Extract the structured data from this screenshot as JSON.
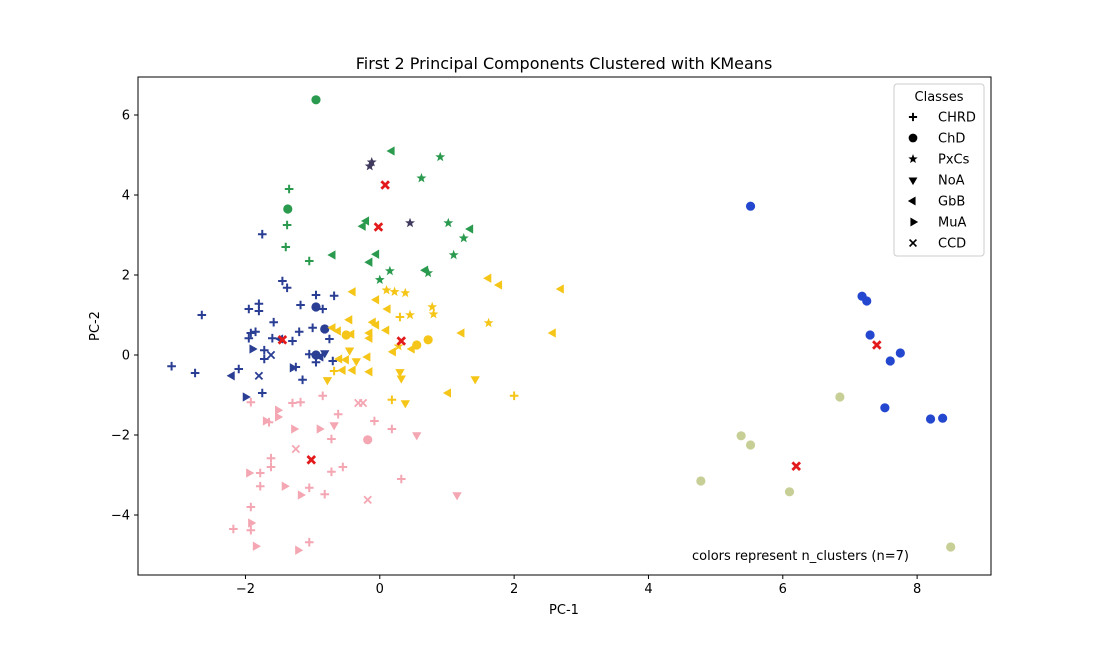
{
  "chart_data": {
    "type": "scatter",
    "title": "First 2 Principal Components Clustered with KMeans",
    "xlabel": "PC-1",
    "ylabel": "PC-2",
    "xlim": [
      -3.6,
      9.1
    ],
    "ylim": [
      -5.5,
      6.95
    ],
    "xticks": [
      -2,
      0,
      2,
      4,
      6,
      8
    ],
    "yticks": [
      -4,
      -2,
      0,
      2,
      4,
      6
    ],
    "grid": false,
    "legend": {
      "title": "Classes",
      "position": "top-right",
      "entries": [
        {
          "label": "CHRD",
          "marker": "plus"
        },
        {
          "label": "ChD",
          "marker": "circle"
        },
        {
          "label": "PxCs",
          "marker": "star"
        },
        {
          "label": "NoA",
          "marker": "tri-down"
        },
        {
          "label": "GbB",
          "marker": "tri-left"
        },
        {
          "label": "MuA",
          "marker": "tri-right"
        },
        {
          "label": "CCD",
          "marker": "x"
        }
      ]
    },
    "annotation": "colors represent n_clusters (n=7)",
    "cluster_colors": {
      "green": "#2a9a4e",
      "purple": "#3f3a5e",
      "navy": "#2a3e94",
      "yellow": "#f5c518",
      "pink": "#f4a6b2",
      "blue": "#2447d0",
      "olive": "#c8cf96"
    },
    "centroid_color": "#e31a1c",
    "points": [
      {
        "x": -0.95,
        "y": 6.38,
        "m": "circle",
        "c": "green"
      },
      {
        "x": 0.18,
        "y": 5.1,
        "m": "tri-left",
        "c": "green"
      },
      {
        "x": 0.9,
        "y": 4.95,
        "m": "star",
        "c": "green"
      },
      {
        "x": -0.12,
        "y": 4.82,
        "m": "star",
        "c": "purple"
      },
      {
        "x": -0.15,
        "y": 4.72,
        "m": "star",
        "c": "purple"
      },
      {
        "x": 0.62,
        "y": 4.42,
        "m": "star",
        "c": "green"
      },
      {
        "x": -1.35,
        "y": 4.15,
        "m": "plus",
        "c": "green"
      },
      {
        "x": -1.37,
        "y": 3.65,
        "m": "circle",
        "c": "green"
      },
      {
        "x": 0.45,
        "y": 3.3,
        "m": "star",
        "c": "purple"
      },
      {
        "x": -0.2,
        "y": 3.35,
        "m": "tri-left",
        "c": "green"
      },
      {
        "x": -0.25,
        "y": 3.22,
        "m": "tri-left",
        "c": "green"
      },
      {
        "x": 1.02,
        "y": 3.3,
        "m": "star",
        "c": "green"
      },
      {
        "x": 1.35,
        "y": 3.15,
        "m": "tri-left",
        "c": "green"
      },
      {
        "x": -1.38,
        "y": 3.25,
        "m": "plus",
        "c": "green"
      },
      {
        "x": 1.25,
        "y": 2.92,
        "m": "star",
        "c": "green"
      },
      {
        "x": -1.4,
        "y": 2.7,
        "m": "plus",
        "c": "green"
      },
      {
        "x": -0.05,
        "y": 2.52,
        "m": "tri-left",
        "c": "green"
      },
      {
        "x": -0.7,
        "y": 2.5,
        "m": "tri-left",
        "c": "green"
      },
      {
        "x": 1.1,
        "y": 2.5,
        "m": "star",
        "c": "green"
      },
      {
        "x": -1.05,
        "y": 2.35,
        "m": "plus",
        "c": "green"
      },
      {
        "x": -0.15,
        "y": 2.32,
        "m": "tri-left",
        "c": "green"
      },
      {
        "x": 0.68,
        "y": 2.12,
        "m": "tri-left",
        "c": "green"
      },
      {
        "x": 0.72,
        "y": 2.05,
        "m": "star",
        "c": "green"
      },
      {
        "x": 0.15,
        "y": 2.1,
        "m": "star",
        "c": "green"
      },
      {
        "x": 0.0,
        "y": 1.88,
        "m": "star",
        "c": "green"
      },
      {
        "x": -1.75,
        "y": 3.02,
        "m": "plus",
        "c": "navy"
      },
      {
        "x": -1.45,
        "y": 1.85,
        "m": "plus",
        "c": "navy"
      },
      {
        "x": -1.38,
        "y": 1.68,
        "m": "plus",
        "c": "navy"
      },
      {
        "x": -0.95,
        "y": 1.5,
        "m": "plus",
        "c": "navy"
      },
      {
        "x": -0.68,
        "y": 1.48,
        "m": "plus",
        "c": "navy"
      },
      {
        "x": -1.8,
        "y": 1.28,
        "m": "plus",
        "c": "navy"
      },
      {
        "x": -1.18,
        "y": 1.25,
        "m": "plus",
        "c": "navy"
      },
      {
        "x": -1.95,
        "y": 1.15,
        "m": "plus",
        "c": "navy"
      },
      {
        "x": -1.8,
        "y": 1.1,
        "m": "plus",
        "c": "navy"
      },
      {
        "x": -0.95,
        "y": 1.2,
        "m": "circle",
        "c": "navy"
      },
      {
        "x": -0.85,
        "y": 1.15,
        "m": "plus",
        "c": "navy"
      },
      {
        "x": -2.65,
        "y": 1.0,
        "m": "plus",
        "c": "navy"
      },
      {
        "x": -1.58,
        "y": 0.82,
        "m": "plus",
        "c": "navy"
      },
      {
        "x": -1.0,
        "y": 0.68,
        "m": "plus",
        "c": "navy"
      },
      {
        "x": -0.82,
        "y": 0.65,
        "m": "circle",
        "c": "navy"
      },
      {
        "x": -1.92,
        "y": 0.55,
        "m": "plus",
        "c": "navy"
      },
      {
        "x": -1.85,
        "y": 0.58,
        "m": "plus",
        "c": "navy"
      },
      {
        "x": -1.2,
        "y": 0.58,
        "m": "plus",
        "c": "navy"
      },
      {
        "x": -1.95,
        "y": 0.42,
        "m": "plus",
        "c": "navy"
      },
      {
        "x": -1.6,
        "y": 0.42,
        "m": "plus",
        "c": "navy"
      },
      {
        "x": -1.48,
        "y": 0.4,
        "m": "tri-left",
        "c": "navy"
      },
      {
        "x": -0.75,
        "y": 0.4,
        "m": "plus",
        "c": "navy"
      },
      {
        "x": -1.3,
        "y": 0.35,
        "m": "plus",
        "c": "navy"
      },
      {
        "x": -1.9,
        "y": 0.15,
        "m": "tri-right",
        "c": "navy"
      },
      {
        "x": -1.72,
        "y": 0.12,
        "m": "plus",
        "c": "navy"
      },
      {
        "x": -1.62,
        "y": 0.0,
        "m": "x",
        "c": "navy"
      },
      {
        "x": -1.72,
        "y": -0.1,
        "m": "plus",
        "c": "navy"
      },
      {
        "x": -1.05,
        "y": 0.02,
        "m": "plus",
        "c": "navy"
      },
      {
        "x": -0.95,
        "y": 0.0,
        "m": "circle",
        "c": "navy"
      },
      {
        "x": -0.82,
        "y": 0.05,
        "m": "tri-down",
        "c": "navy"
      },
      {
        "x": -0.88,
        "y": -0.05,
        "m": "tri-left",
        "c": "navy"
      },
      {
        "x": -1.25,
        "y": -0.3,
        "m": "plus",
        "c": "navy"
      },
      {
        "x": -1.3,
        "y": -0.32,
        "m": "tri-right",
        "c": "navy"
      },
      {
        "x": -0.95,
        "y": -0.18,
        "m": "plus",
        "c": "navy"
      },
      {
        "x": -0.7,
        "y": -0.15,
        "m": "plus",
        "c": "navy"
      },
      {
        "x": -3.1,
        "y": -0.28,
        "m": "plus",
        "c": "navy"
      },
      {
        "x": -2.1,
        "y": -0.35,
        "m": "plus",
        "c": "navy"
      },
      {
        "x": -2.75,
        "y": -0.45,
        "m": "plus",
        "c": "navy"
      },
      {
        "x": -2.2,
        "y": -0.52,
        "m": "tri-left",
        "c": "navy"
      },
      {
        "x": -1.8,
        "y": -0.52,
        "m": "x",
        "c": "navy"
      },
      {
        "x": -1.15,
        "y": -0.62,
        "m": "plus",
        "c": "navy"
      },
      {
        "x": -1.75,
        "y": -0.95,
        "m": "plus",
        "c": "navy"
      },
      {
        "x": -2.0,
        "y": -1.05,
        "m": "tri-right",
        "c": "navy"
      },
      {
        "x": -0.4,
        "y": 1.58,
        "m": "tri-left",
        "c": "yellow"
      },
      {
        "x": 0.1,
        "y": 1.62,
        "m": "star",
        "c": "yellow"
      },
      {
        "x": 0.22,
        "y": 1.58,
        "m": "star",
        "c": "yellow"
      },
      {
        "x": 0.38,
        "y": 1.55,
        "m": "star",
        "c": "yellow"
      },
      {
        "x": 1.62,
        "y": 1.92,
        "m": "tri-left",
        "c": "yellow"
      },
      {
        "x": 1.78,
        "y": 1.75,
        "m": "tri-left",
        "c": "yellow"
      },
      {
        "x": 2.7,
        "y": 1.65,
        "m": "tri-left",
        "c": "yellow"
      },
      {
        "x": -0.05,
        "y": 1.38,
        "m": "tri-left",
        "c": "yellow"
      },
      {
        "x": 0.78,
        "y": 1.2,
        "m": "star",
        "c": "yellow"
      },
      {
        "x": 0.12,
        "y": 1.15,
        "m": "tri-left",
        "c": "yellow"
      },
      {
        "x": 0.45,
        "y": 1.0,
        "m": "star",
        "c": "yellow"
      },
      {
        "x": 0.8,
        "y": 1.02,
        "m": "star",
        "c": "yellow"
      },
      {
        "x": 0.3,
        "y": 0.95,
        "m": "plus",
        "c": "yellow"
      },
      {
        "x": -0.45,
        "y": 0.88,
        "m": "tri-left",
        "c": "yellow"
      },
      {
        "x": -0.1,
        "y": 0.82,
        "m": "tri-left",
        "c": "yellow"
      },
      {
        "x": 1.62,
        "y": 0.8,
        "m": "star",
        "c": "yellow"
      },
      {
        "x": -0.05,
        "y": 0.75,
        "m": "tri-left",
        "c": "yellow"
      },
      {
        "x": -0.7,
        "y": 0.68,
        "m": "tri-left",
        "c": "yellow"
      },
      {
        "x": -0.62,
        "y": 0.6,
        "m": "tri-left",
        "c": "yellow"
      },
      {
        "x": 0.1,
        "y": 0.62,
        "m": "tri-left",
        "c": "yellow"
      },
      {
        "x": -0.15,
        "y": 0.55,
        "m": "tri-left",
        "c": "yellow"
      },
      {
        "x": 1.22,
        "y": 0.55,
        "m": "tri-left",
        "c": "yellow"
      },
      {
        "x": 2.58,
        "y": 0.55,
        "m": "tri-left",
        "c": "yellow"
      },
      {
        "x": -0.5,
        "y": 0.5,
        "m": "circle",
        "c": "yellow"
      },
      {
        "x": -0.42,
        "y": 0.52,
        "m": "tri-left",
        "c": "yellow"
      },
      {
        "x": -0.15,
        "y": 0.42,
        "m": "tri-left",
        "c": "yellow"
      },
      {
        "x": 0.72,
        "y": 0.38,
        "m": "circle",
        "c": "yellow"
      },
      {
        "x": 0.55,
        "y": 0.25,
        "m": "circle",
        "c": "yellow"
      },
      {
        "x": 0.28,
        "y": 0.22,
        "m": "star",
        "c": "yellow"
      },
      {
        "x": 0.48,
        "y": 0.15,
        "m": "tri-left",
        "c": "yellow"
      },
      {
        "x": -0.45,
        "y": 0.12,
        "m": "tri-down",
        "c": "yellow"
      },
      {
        "x": 0.2,
        "y": 0.08,
        "m": "tri-left",
        "c": "yellow"
      },
      {
        "x": -0.6,
        "y": -0.1,
        "m": "tri-left",
        "c": "yellow"
      },
      {
        "x": -0.5,
        "y": -0.12,
        "m": "tri-left",
        "c": "yellow"
      },
      {
        "x": -0.35,
        "y": -0.15,
        "m": "tri-down",
        "c": "yellow"
      },
      {
        "x": -0.18,
        "y": -0.05,
        "m": "tri-left",
        "c": "yellow"
      },
      {
        "x": -0.68,
        "y": -0.4,
        "m": "plus",
        "c": "yellow"
      },
      {
        "x": -0.55,
        "y": -0.38,
        "m": "tri-left",
        "c": "yellow"
      },
      {
        "x": -0.4,
        "y": -0.38,
        "m": "tri-left",
        "c": "yellow"
      },
      {
        "x": -0.15,
        "y": -0.42,
        "m": "tri-left",
        "c": "yellow"
      },
      {
        "x": 0.3,
        "y": -0.42,
        "m": "tri-down",
        "c": "yellow"
      },
      {
        "x": 0.32,
        "y": -0.58,
        "m": "tri-down",
        "c": "yellow"
      },
      {
        "x": -0.78,
        "y": -0.62,
        "m": "tri-down",
        "c": "yellow"
      },
      {
        "x": 1.42,
        "y": -0.6,
        "m": "tri-down",
        "c": "yellow"
      },
      {
        "x": 1.02,
        "y": -0.95,
        "m": "tri-left",
        "c": "yellow"
      },
      {
        "x": 2.0,
        "y": -1.02,
        "m": "plus",
        "c": "yellow"
      },
      {
        "x": 0.18,
        "y": -1.12,
        "m": "plus",
        "c": "yellow"
      },
      {
        "x": 0.38,
        "y": -1.2,
        "m": "tri-down",
        "c": "yellow"
      },
      {
        "x": -1.92,
        "y": -1.18,
        "m": "plus",
        "c": "pink"
      },
      {
        "x": -1.3,
        "y": -1.2,
        "m": "plus",
        "c": "pink"
      },
      {
        "x": -1.18,
        "y": -1.18,
        "m": "plus",
        "c": "pink"
      },
      {
        "x": -0.85,
        "y": -1.02,
        "m": "plus",
        "c": "pink"
      },
      {
        "x": -0.32,
        "y": -1.2,
        "m": "x",
        "c": "pink"
      },
      {
        "x": -0.25,
        "y": -1.2,
        "m": "x",
        "c": "pink"
      },
      {
        "x": -1.52,
        "y": -1.38,
        "m": "tri-right",
        "c": "pink"
      },
      {
        "x": -0.62,
        "y": -1.48,
        "m": "plus",
        "c": "pink"
      },
      {
        "x": -1.52,
        "y": -1.55,
        "m": "tri-right",
        "c": "pink"
      },
      {
        "x": -1.7,
        "y": -1.65,
        "m": "tri-right",
        "c": "pink"
      },
      {
        "x": -1.65,
        "y": -1.68,
        "m": "plus",
        "c": "pink"
      },
      {
        "x": -0.08,
        "y": -1.65,
        "m": "plus",
        "c": "pink"
      },
      {
        "x": -0.68,
        "y": -1.75,
        "m": "tri-down",
        "c": "pink"
      },
      {
        "x": -1.28,
        "y": -1.85,
        "m": "tri-right",
        "c": "pink"
      },
      {
        "x": -0.9,
        "y": -1.85,
        "m": "tri-right",
        "c": "pink"
      },
      {
        "x": 0.18,
        "y": -1.85,
        "m": "plus",
        "c": "pink"
      },
      {
        "x": 0.55,
        "y": -2.0,
        "m": "tri-down",
        "c": "pink"
      },
      {
        "x": -0.72,
        "y": -2.1,
        "m": "plus",
        "c": "pink"
      },
      {
        "x": -0.18,
        "y": -2.12,
        "m": "circle",
        "c": "pink"
      },
      {
        "x": -1.25,
        "y": -2.35,
        "m": "x",
        "c": "pink"
      },
      {
        "x": -1.62,
        "y": -2.58,
        "m": "plus",
        "c": "pink"
      },
      {
        "x": -1.62,
        "y": -2.8,
        "m": "plus",
        "c": "pink"
      },
      {
        "x": -0.55,
        "y": -2.8,
        "m": "plus",
        "c": "pink"
      },
      {
        "x": -1.95,
        "y": -2.95,
        "m": "tri-right",
        "c": "pink"
      },
      {
        "x": -1.78,
        "y": -2.95,
        "m": "plus",
        "c": "pink"
      },
      {
        "x": -0.72,
        "y": -2.92,
        "m": "plus",
        "c": "pink"
      },
      {
        "x": 0.32,
        "y": -3.1,
        "m": "plus",
        "c": "pink"
      },
      {
        "x": -1.78,
        "y": -3.28,
        "m": "plus",
        "c": "pink"
      },
      {
        "x": -1.42,
        "y": -3.28,
        "m": "tri-right",
        "c": "pink"
      },
      {
        "x": -1.05,
        "y": -3.32,
        "m": "plus",
        "c": "pink"
      },
      {
        "x": -1.18,
        "y": -3.5,
        "m": "tri-right",
        "c": "pink"
      },
      {
        "x": -0.82,
        "y": -3.48,
        "m": "plus",
        "c": "pink"
      },
      {
        "x": 1.15,
        "y": -3.5,
        "m": "tri-down",
        "c": "pink"
      },
      {
        "x": -0.18,
        "y": -3.62,
        "m": "x",
        "c": "pink"
      },
      {
        "x": -1.92,
        "y": -3.8,
        "m": "plus",
        "c": "pink"
      },
      {
        "x": -1.92,
        "y": -4.2,
        "m": "tri-right",
        "c": "pink"
      },
      {
        "x": -2.18,
        "y": -4.35,
        "m": "plus",
        "c": "pink"
      },
      {
        "x": -1.92,
        "y": -4.38,
        "m": "plus",
        "c": "pink"
      },
      {
        "x": -1.05,
        "y": -4.68,
        "m": "plus",
        "c": "pink"
      },
      {
        "x": -1.85,
        "y": -4.78,
        "m": "tri-right",
        "c": "pink"
      },
      {
        "x": -1.22,
        "y": -4.88,
        "m": "tri-right",
        "c": "pink"
      },
      {
        "x": 5.52,
        "y": 3.72,
        "m": "circle",
        "c": "blue"
      },
      {
        "x": 7.18,
        "y": 1.47,
        "m": "circle",
        "c": "blue"
      },
      {
        "x": 7.25,
        "y": 1.35,
        "m": "circle",
        "c": "blue"
      },
      {
        "x": 7.3,
        "y": 0.5,
        "m": "circle",
        "c": "blue"
      },
      {
        "x": 7.75,
        "y": 0.05,
        "m": "circle",
        "c": "blue"
      },
      {
        "x": 7.6,
        "y": -0.15,
        "m": "circle",
        "c": "blue"
      },
      {
        "x": 7.52,
        "y": -1.32,
        "m": "circle",
        "c": "blue"
      },
      {
        "x": 8.2,
        "y": -1.6,
        "m": "circle",
        "c": "blue"
      },
      {
        "x": 8.38,
        "y": -1.58,
        "m": "circle",
        "c": "blue"
      },
      {
        "x": 6.85,
        "y": -1.05,
        "m": "circle",
        "c": "olive"
      },
      {
        "x": 5.38,
        "y": -2.02,
        "m": "circle",
        "c": "olive"
      },
      {
        "x": 5.52,
        "y": -2.25,
        "m": "circle",
        "c": "olive"
      },
      {
        "x": 4.78,
        "y": -3.15,
        "m": "circle",
        "c": "olive"
      },
      {
        "x": 6.1,
        "y": -3.42,
        "m": "circle",
        "c": "olive"
      },
      {
        "x": 8.5,
        "y": -4.8,
        "m": "circle",
        "c": "olive"
      }
    ],
    "centroids": [
      {
        "x": 0.08,
        "y": 4.25
      },
      {
        "x": -0.02,
        "y": 3.2
      },
      {
        "x": -1.45,
        "y": 0.38
      },
      {
        "x": 0.32,
        "y": 0.35
      },
      {
        "x": 7.4,
        "y": 0.25
      },
      {
        "x": -1.02,
        "y": -2.62
      },
      {
        "x": 6.2,
        "y": -2.78
      }
    ]
  }
}
